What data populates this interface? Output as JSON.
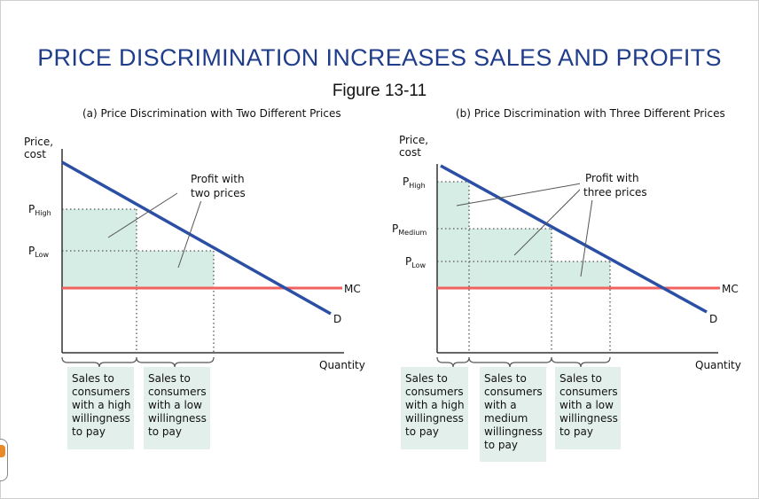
{
  "title": "PRICE DISCRIMINATION INCREASES SALES AND  PROFITS",
  "figure_label": "Figure 13-11",
  "colors": {
    "title": "#1f3d8a",
    "demand": "#2b4fa5",
    "mc": "#f0625f",
    "profit_fill": "#d6ede6",
    "box_fill": "#e2efeb"
  },
  "panel_a": {
    "title": "(a) Price Discrimination with Two Different Prices",
    "y_axis_label": [
      "Price,",
      "cost"
    ],
    "x_axis_label": "Quantity",
    "prices": [
      {
        "main": "P",
        "sub": "High"
      },
      {
        "main": "P",
        "sub": "Low"
      }
    ],
    "mc_label": "MC",
    "demand_label": "D",
    "annotation": [
      "Profit with",
      "two prices"
    ],
    "boxes": [
      [
        "Sales to",
        "consumers",
        "with a high",
        "willingness",
        "to pay"
      ],
      [
        "Sales to",
        "consumers",
        "with a low",
        "willingness",
        "to pay"
      ]
    ]
  },
  "panel_b": {
    "title": "(b) Price Discrimination with Three Different Prices",
    "y_axis_label": [
      "Price,",
      "cost"
    ],
    "x_axis_label": "Quantity",
    "prices": [
      {
        "main": "P",
        "sub": "High"
      },
      {
        "main": "P",
        "sub": "Medium"
      },
      {
        "main": "P",
        "sub": "Low"
      }
    ],
    "mc_label": "MC",
    "demand_label": "D",
    "annotation": [
      "Profit with",
      "three prices"
    ],
    "boxes": [
      [
        "Sales to",
        "consumers",
        "with a high",
        "willingness",
        "to pay"
      ],
      [
        "Sales to",
        "consumers",
        "with a",
        "medium",
        "willingness",
        "to pay"
      ],
      [
        "Sales to",
        "consumers",
        "with a low",
        "willingness",
        "to pay"
      ]
    ]
  }
}
